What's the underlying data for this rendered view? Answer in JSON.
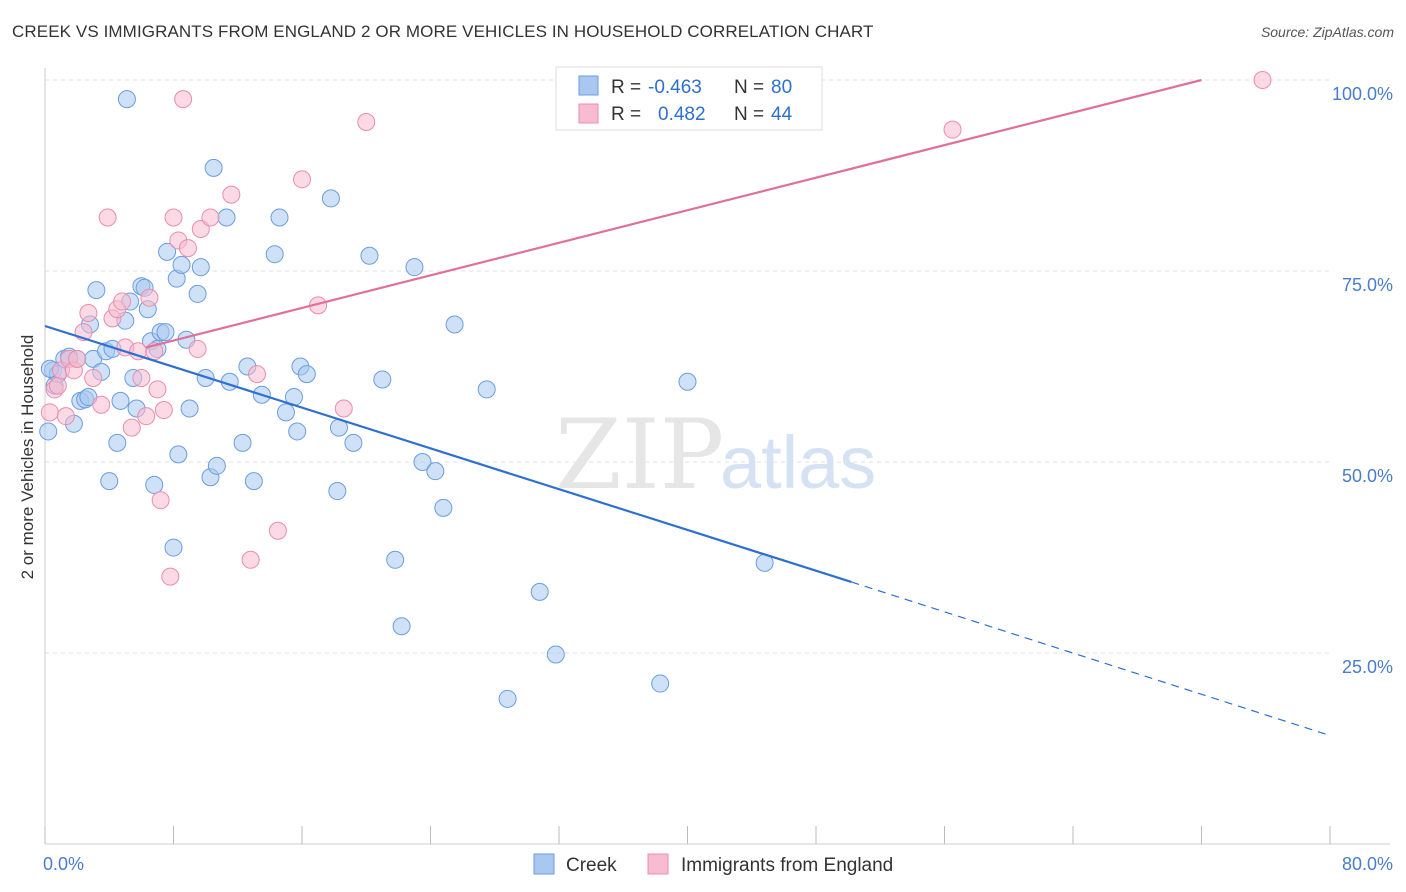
{
  "title": "CREEK VS IMMIGRANTS FROM ENGLAND 2 OR MORE VEHICLES IN HOUSEHOLD CORRELATION CHART",
  "source": "Source: ZipAtlas.com",
  "watermark": {
    "zip": "ZIP",
    "atlas": "atlas"
  },
  "chart_data": {
    "type": "scatter",
    "title": "CREEK VS IMMIGRANTS FROM ENGLAND 2 OR MORE VEHICLES IN HOUSEHOLD CORRELATION CHART",
    "xlabel": "",
    "ylabel": "2 or more Vehicles in Household",
    "xlim": [
      0,
      80
    ],
    "ylim": [
      0,
      105
    ],
    "x_tick_labels": [
      "0.0%",
      "80.0%"
    ],
    "y_ticks": [
      25,
      50,
      75,
      100
    ],
    "y_tick_labels": [
      "25.0%",
      "50.0%",
      "75.0%",
      "100.0%"
    ],
    "grid": true,
    "legend_position": "top-center",
    "stats": [
      {
        "r_label": "R =",
        "r": "-0.463",
        "n_label": "N =",
        "n": "80"
      },
      {
        "r_label": "R =",
        "r": "0.482",
        "n_label": "N =",
        "n": "44"
      }
    ],
    "series": [
      {
        "name": "Creek",
        "color": "#a8c8f0",
        "stroke": "#6b9de0",
        "line_color": "#2e6fcf",
        "trend": {
          "x0": 0,
          "y0": 67.8,
          "x1": 50.2,
          "y1": 34.3,
          "dash_x1": 80,
          "dash_y1": 14.2
        },
        "points": [
          [
            0.2,
            54.0
          ],
          [
            0.5,
            62.0
          ],
          [
            0.6,
            60.0
          ],
          [
            0.8,
            61.5
          ],
          [
            1.2,
            63.5
          ],
          [
            1.5,
            63.8
          ],
          [
            1.8,
            55.0
          ],
          [
            2.0,
            63.5
          ],
          [
            2.2,
            58.0
          ],
          [
            2.5,
            58.2
          ],
          [
            2.7,
            58.5
          ],
          [
            2.8,
            68.0
          ],
          [
            3.0,
            63.5
          ],
          [
            3.2,
            72.5
          ],
          [
            3.5,
            61.8
          ],
          [
            3.8,
            64.5
          ],
          [
            4.0,
            47.5
          ],
          [
            4.2,
            64.8
          ],
          [
            4.5,
            52.5
          ],
          [
            4.7,
            58.0
          ],
          [
            5.0,
            68.5
          ],
          [
            5.1,
            97.5
          ],
          [
            5.3,
            71.0
          ],
          [
            5.5,
            61.0
          ],
          [
            5.7,
            57.0
          ],
          [
            6.0,
            73.0
          ],
          [
            6.2,
            72.8
          ],
          [
            6.4,
            70.0
          ],
          [
            6.6,
            65.8
          ],
          [
            6.8,
            47.0
          ],
          [
            7.0,
            64.8
          ],
          [
            7.2,
            67.0
          ],
          [
            7.5,
            67.0
          ],
          [
            7.6,
            77.5
          ],
          [
            8.0,
            38.8
          ],
          [
            8.2,
            74.0
          ],
          [
            8.3,
            51.0
          ],
          [
            8.5,
            75.8
          ],
          [
            8.8,
            66.0
          ],
          [
            9.0,
            57.0
          ],
          [
            9.5,
            72.0
          ],
          [
            9.7,
            75.5
          ],
          [
            10.0,
            61.0
          ],
          [
            10.3,
            48.0
          ],
          [
            10.5,
            88.5
          ],
          [
            10.7,
            49.5
          ],
          [
            11.3,
            82.0
          ],
          [
            11.5,
            60.5
          ],
          [
            12.3,
            52.5
          ],
          [
            12.6,
            62.5
          ],
          [
            13.0,
            47.5
          ],
          [
            13.5,
            58.8
          ],
          [
            14.3,
            77.2
          ],
          [
            14.6,
            82.0
          ],
          [
            15.0,
            56.5
          ],
          [
            15.5,
            58.5
          ],
          [
            15.7,
            54.0
          ],
          [
            15.9,
            62.5
          ],
          [
            16.3,
            61.5
          ],
          [
            17.8,
            84.5
          ],
          [
            18.2,
            46.2
          ],
          [
            18.3,
            54.5
          ],
          [
            19.2,
            52.5
          ],
          [
            20.2,
            77.0
          ],
          [
            21.0,
            60.8
          ],
          [
            21.8,
            37.2
          ],
          [
            22.2,
            28.5
          ],
          [
            23.0,
            75.5
          ],
          [
            23.5,
            50.0
          ],
          [
            24.3,
            48.8
          ],
          [
            24.8,
            44.0
          ],
          [
            25.5,
            68.0
          ],
          [
            27.5,
            59.5
          ],
          [
            28.8,
            19.0
          ],
          [
            30.8,
            33.0
          ],
          [
            31.8,
            24.8
          ],
          [
            38.3,
            21.0
          ],
          [
            40.0,
            60.5
          ],
          [
            44.8,
            36.8
          ],
          [
            0.3,
            62.2
          ]
        ]
      },
      {
        "name": "Immigrants from England",
        "color": "#f8bcd0",
        "stroke": "#ec8cac",
        "line_color": "#e0709a",
        "trend": {
          "x0": 6.3,
          "y0": 65.0,
          "x1": 72.0,
          "y1": 100.0
        },
        "points": [
          [
            0.3,
            56.5
          ],
          [
            0.6,
            59.5
          ],
          [
            0.8,
            60.0
          ],
          [
            1.0,
            62.0
          ],
          [
            1.3,
            56.0
          ],
          [
            1.5,
            63.5
          ],
          [
            1.8,
            62.0
          ],
          [
            2.0,
            63.5
          ],
          [
            2.4,
            67.0
          ],
          [
            2.7,
            69.5
          ],
          [
            3.0,
            61.0
          ],
          [
            3.5,
            57.5
          ],
          [
            3.9,
            82.0
          ],
          [
            4.2,
            68.8
          ],
          [
            4.5,
            70.0
          ],
          [
            4.8,
            71.0
          ],
          [
            5.0,
            65.0
          ],
          [
            5.4,
            54.5
          ],
          [
            5.8,
            64.5
          ],
          [
            6.0,
            61.0
          ],
          [
            6.3,
            56.0
          ],
          [
            6.5,
            71.5
          ],
          [
            6.8,
            64.5
          ],
          [
            7.0,
            59.5
          ],
          [
            7.2,
            45.0
          ],
          [
            7.4,
            56.8
          ],
          [
            7.8,
            35.0
          ],
          [
            8.0,
            82.0
          ],
          [
            8.3,
            79.0
          ],
          [
            8.6,
            97.5
          ],
          [
            8.9,
            78.0
          ],
          [
            9.5,
            64.8
          ],
          [
            9.7,
            80.5
          ],
          [
            10.3,
            82.0
          ],
          [
            11.6,
            85.0
          ],
          [
            12.8,
            37.2
          ],
          [
            13.2,
            61.5
          ],
          [
            14.5,
            41.0
          ],
          [
            16.0,
            87.0
          ],
          [
            17.0,
            70.5
          ],
          [
            18.6,
            57.0
          ],
          [
            20.0,
            94.5
          ],
          [
            56.5,
            93.5
          ],
          [
            75.8,
            100.0
          ]
        ]
      }
    ]
  },
  "legend": {
    "bottom": [
      {
        "label": "Creek"
      },
      {
        "label": "Immigrants from England"
      }
    ]
  }
}
